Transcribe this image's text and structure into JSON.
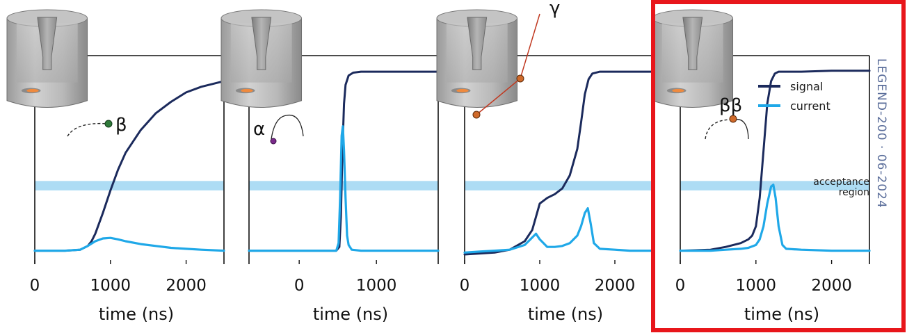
{
  "chart_data": [
    {
      "type": "line",
      "particle_label": "β",
      "xlabel": "time (ns)",
      "xlim": [
        0,
        2500
      ],
      "xticks": [
        0,
        1000,
        2000
      ],
      "acceptance_band": [
        0.34,
        0.39
      ],
      "series": [
        {
          "name": "signal",
          "color": "#1b2a5c",
          "x": [
            0,
            200,
            400,
            600,
            700,
            750,
            800,
            900,
            1000,
            1100,
            1200,
            1400,
            1600,
            1800,
            2000,
            2200,
            2500
          ],
          "y": [
            0.02,
            0.02,
            0.02,
            0.025,
            0.045,
            0.07,
            0.11,
            0.22,
            0.34,
            0.45,
            0.54,
            0.66,
            0.75,
            0.81,
            0.86,
            0.89,
            0.92
          ]
        },
        {
          "name": "current",
          "color": "#1fa8e8",
          "x": [
            0,
            200,
            400,
            600,
            700,
            800,
            900,
            1000,
            1100,
            1200,
            1400,
            1600,
            1800,
            2000,
            2200,
            2500
          ],
          "y": [
            0.02,
            0.02,
            0.02,
            0.025,
            0.045,
            0.07,
            0.085,
            0.088,
            0.08,
            0.07,
            0.055,
            0.045,
            0.035,
            0.03,
            0.025,
            0.02
          ]
        }
      ]
    },
    {
      "type": "line",
      "particle_label": "α",
      "xlabel": "time (ns)",
      "xlim": [
        -650,
        1800
      ],
      "xticks": [
        0,
        1000
      ],
      "acceptance_band": [
        0.34,
        0.39
      ],
      "series": [
        {
          "name": "signal",
          "color": "#1b2a5c",
          "x": [
            -650,
            -300,
            0,
            300,
            480,
            520,
            540,
            560,
            580,
            600,
            640,
            700,
            800,
            1000,
            1400,
            1800
          ],
          "y": [
            0.02,
            0.02,
            0.02,
            0.02,
            0.02,
            0.04,
            0.2,
            0.55,
            0.8,
            0.9,
            0.95,
            0.965,
            0.97,
            0.97,
            0.97,
            0.97
          ]
        },
        {
          "name": "current",
          "color": "#1fa8e8",
          "x": [
            -650,
            -300,
            0,
            300,
            480,
            510,
            530,
            550,
            565,
            580,
            600,
            620,
            640,
            680,
            800,
            1200,
            1800
          ],
          "y": [
            0.02,
            0.02,
            0.02,
            0.02,
            0.02,
            0.06,
            0.3,
            0.63,
            0.68,
            0.55,
            0.3,
            0.1,
            0.05,
            0.025,
            0.02,
            0.02,
            0.02
          ]
        }
      ]
    },
    {
      "type": "line",
      "particle_label": "γ",
      "xlabel": "time (ns)",
      "xlim": [
        0,
        2500
      ],
      "xticks": [
        0,
        1000,
        2000
      ],
      "acceptance_band": [
        0.34,
        0.39
      ],
      "series": [
        {
          "name": "signal",
          "color": "#1b2a5c",
          "x": [
            0,
            200,
            400,
            600,
            800,
            900,
            950,
            1000,
            1100,
            1200,
            1300,
            1400,
            1500,
            1550,
            1600,
            1650,
            1700,
            1800,
            2000,
            2200,
            2500
          ],
          "y": [
            0.0,
            0.005,
            0.01,
            0.025,
            0.07,
            0.13,
            0.2,
            0.27,
            0.3,
            0.32,
            0.35,
            0.42,
            0.56,
            0.7,
            0.85,
            0.93,
            0.96,
            0.97,
            0.97,
            0.97,
            0.97
          ]
        },
        {
          "name": "current",
          "color": "#1fa8e8",
          "x": [
            0,
            200,
            400,
            600,
            800,
            900,
            950,
            1000,
            1100,
            1200,
            1300,
            1400,
            1500,
            1550,
            1600,
            1640,
            1680,
            1720,
            1800,
            2000,
            2200,
            2500
          ],
          "y": [
            0.01,
            0.015,
            0.02,
            0.025,
            0.05,
            0.09,
            0.11,
            0.08,
            0.04,
            0.04,
            0.045,
            0.06,
            0.1,
            0.15,
            0.22,
            0.245,
            0.16,
            0.06,
            0.03,
            0.025,
            0.02,
            0.02
          ]
        }
      ]
    },
    {
      "type": "line",
      "particle_label": "ββ",
      "xlabel": "time (ns)",
      "xlim": [
        0,
        2500
      ],
      "xticks": [
        0,
        1000,
        2000
      ],
      "acceptance_band": [
        0.34,
        0.39
      ],
      "legend": {
        "position": "top-right",
        "entries": [
          "signal",
          "current"
        ]
      },
      "side_annotation": "acceptance\nregion",
      "watermark": "LEGEND-200 · 06-2024",
      "highlight_color": "#e8161b",
      "series": [
        {
          "name": "signal",
          "color": "#1b2a5c",
          "x": [
            0,
            200,
            400,
            600,
            700,
            800,
            900,
            950,
            1000,
            1050,
            1100,
            1150,
            1200,
            1250,
            1300,
            1400,
            1600,
            2000,
            2500
          ],
          "y": [
            0.02,
            0.022,
            0.025,
            0.04,
            0.05,
            0.06,
            0.08,
            0.1,
            0.15,
            0.3,
            0.55,
            0.8,
            0.92,
            0.96,
            0.97,
            0.97,
            0.97,
            0.975,
            0.975
          ]
        },
        {
          "name": "current",
          "color": "#1fa8e8",
          "x": [
            0,
            400,
            600,
            800,
            900,
            1000,
            1050,
            1100,
            1150,
            1200,
            1230,
            1260,
            1300,
            1350,
            1400,
            1600,
            2000,
            2500
          ],
          "y": [
            0.02,
            0.02,
            0.025,
            0.03,
            0.035,
            0.05,
            0.08,
            0.15,
            0.27,
            0.36,
            0.37,
            0.3,
            0.15,
            0.05,
            0.03,
            0.025,
            0.02,
            0.02
          ]
        }
      ]
    }
  ]
}
